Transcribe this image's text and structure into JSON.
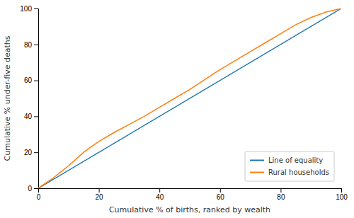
{
  "chart_data": {
    "type": "line",
    "xlabel": "Cumulative % of births, ranked by wealth",
    "ylabel": "Cumulative % under-five deaths",
    "xlim": [
      0,
      100
    ],
    "ylim": [
      0,
      100
    ],
    "xticks": [
      0,
      20,
      40,
      60,
      80,
      100
    ],
    "yticks": [
      0,
      20,
      40,
      60,
      80,
      100
    ],
    "grid": false,
    "legend": "lower right",
    "series": [
      {
        "name": "Line of equality",
        "color": "#1f77b4",
        "x": [
          0,
          100
        ],
        "values": [
          0,
          100
        ]
      },
      {
        "name": "Rural households",
        "color": "#ff7f0e",
        "x": [
          0,
          1,
          3,
          5,
          7,
          10,
          13,
          15,
          17,
          20,
          25,
          30,
          35,
          40,
          45,
          50,
          55,
          60,
          65,
          70,
          75,
          80,
          85,
          90,
          95,
          100
        ],
        "values": [
          0,
          1.2,
          3.5,
          5.8,
          8.5,
          12.5,
          17,
          20,
          22.5,
          26,
          31,
          35.5,
          40,
          45,
          50,
          55,
          60.5,
          66,
          71,
          76,
          81,
          86,
          91,
          95,
          98,
          100
        ]
      }
    ]
  }
}
